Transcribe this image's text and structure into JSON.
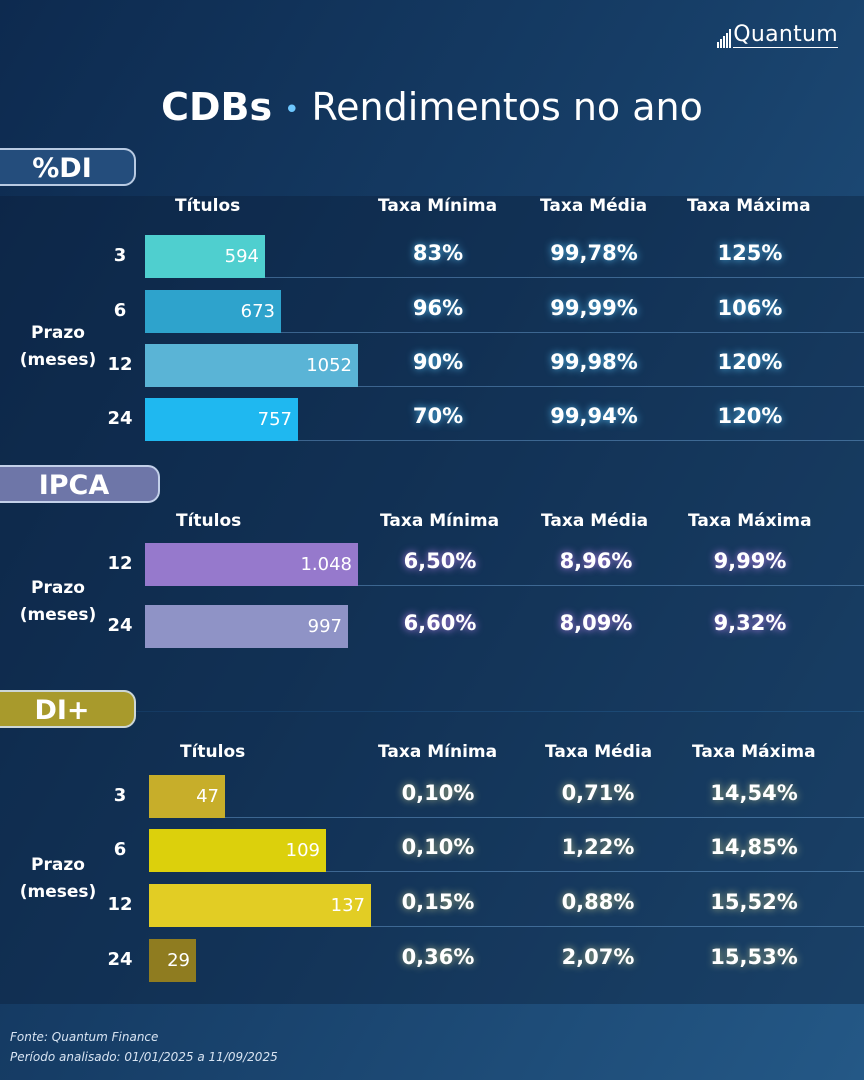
{
  "brand": {
    "name": "Quantum"
  },
  "header": {
    "title_bold": "CDBs",
    "title_sep": "•",
    "title_rest": "Rendimentos no ano"
  },
  "chart_data": [
    {
      "type": "bar",
      "section": "%DI",
      "group_label": "Prazo\n(meses)",
      "columns": [
        "Títulos",
        "Taxa Mínima",
        "Taxa Média",
        "Taxa Máxima"
      ],
      "categories": [
        "3",
        "6",
        "12",
        "24"
      ],
      "values": [
        594,
        673,
        1052,
        757
      ],
      "value_labels": [
        "594",
        "673",
        "1052",
        "757"
      ],
      "taxa_minima": [
        "83%",
        "96%",
        "90%",
        "70%"
      ],
      "taxa_media": [
        "99,78%",
        "99,99%",
        "99,98%",
        "99,94%"
      ],
      "taxa_maxima": [
        "125%",
        "106%",
        "120%",
        "120%"
      ],
      "colors": [
        "#4fcfcf",
        "#2ea3cc",
        "#5ab4d6",
        "#1fb8f0"
      ],
      "badge_color": "#244d7c"
    },
    {
      "type": "bar",
      "section": "IPCA",
      "group_label": "Prazo\n(meses)",
      "columns": [
        "Títulos",
        "Taxa Mínima",
        "Taxa Média",
        "Taxa Máxima"
      ],
      "categories": [
        "12",
        "24"
      ],
      "values": [
        1048,
        997
      ],
      "value_labels": [
        "1.048",
        "997"
      ],
      "taxa_minima": [
        "6,50%",
        "6,60%"
      ],
      "taxa_media": [
        "8,96%",
        "8,09%"
      ],
      "taxa_maxima": [
        "9,99%",
        "9,32%"
      ],
      "colors": [
        "#9679cc",
        "#8f93c6"
      ],
      "badge_color": "#6e76a8"
    },
    {
      "type": "bar",
      "section": "DI+",
      "group_label": "Prazo\n(meses)",
      "columns": [
        "Títulos",
        "Taxa Mínima",
        "Taxa Média",
        "Taxa Máxima"
      ],
      "categories": [
        "3",
        "6",
        "12",
        "24"
      ],
      "values": [
        47,
        109,
        137,
        29
      ],
      "value_labels": [
        "47",
        "109",
        "137",
        "29"
      ],
      "taxa_minima": [
        "0,10%",
        "0,10%",
        "0,15%",
        "0,36%"
      ],
      "taxa_media": [
        "0,71%",
        "1,22%",
        "0,88%",
        "2,07%"
      ],
      "taxa_maxima": [
        "14,54%",
        "14,85%",
        "15,52%",
        "15,53%"
      ],
      "colors": [
        "#c7ae2a",
        "#dcd00c",
        "#e2cd24",
        "#8f7c20"
      ],
      "badge_color": "#a89a2c"
    }
  ],
  "footer": {
    "fonte": "Fonte: Quantum Finance",
    "periodo": "Período analisado: 01/01/2025 a 11/09/2025"
  }
}
